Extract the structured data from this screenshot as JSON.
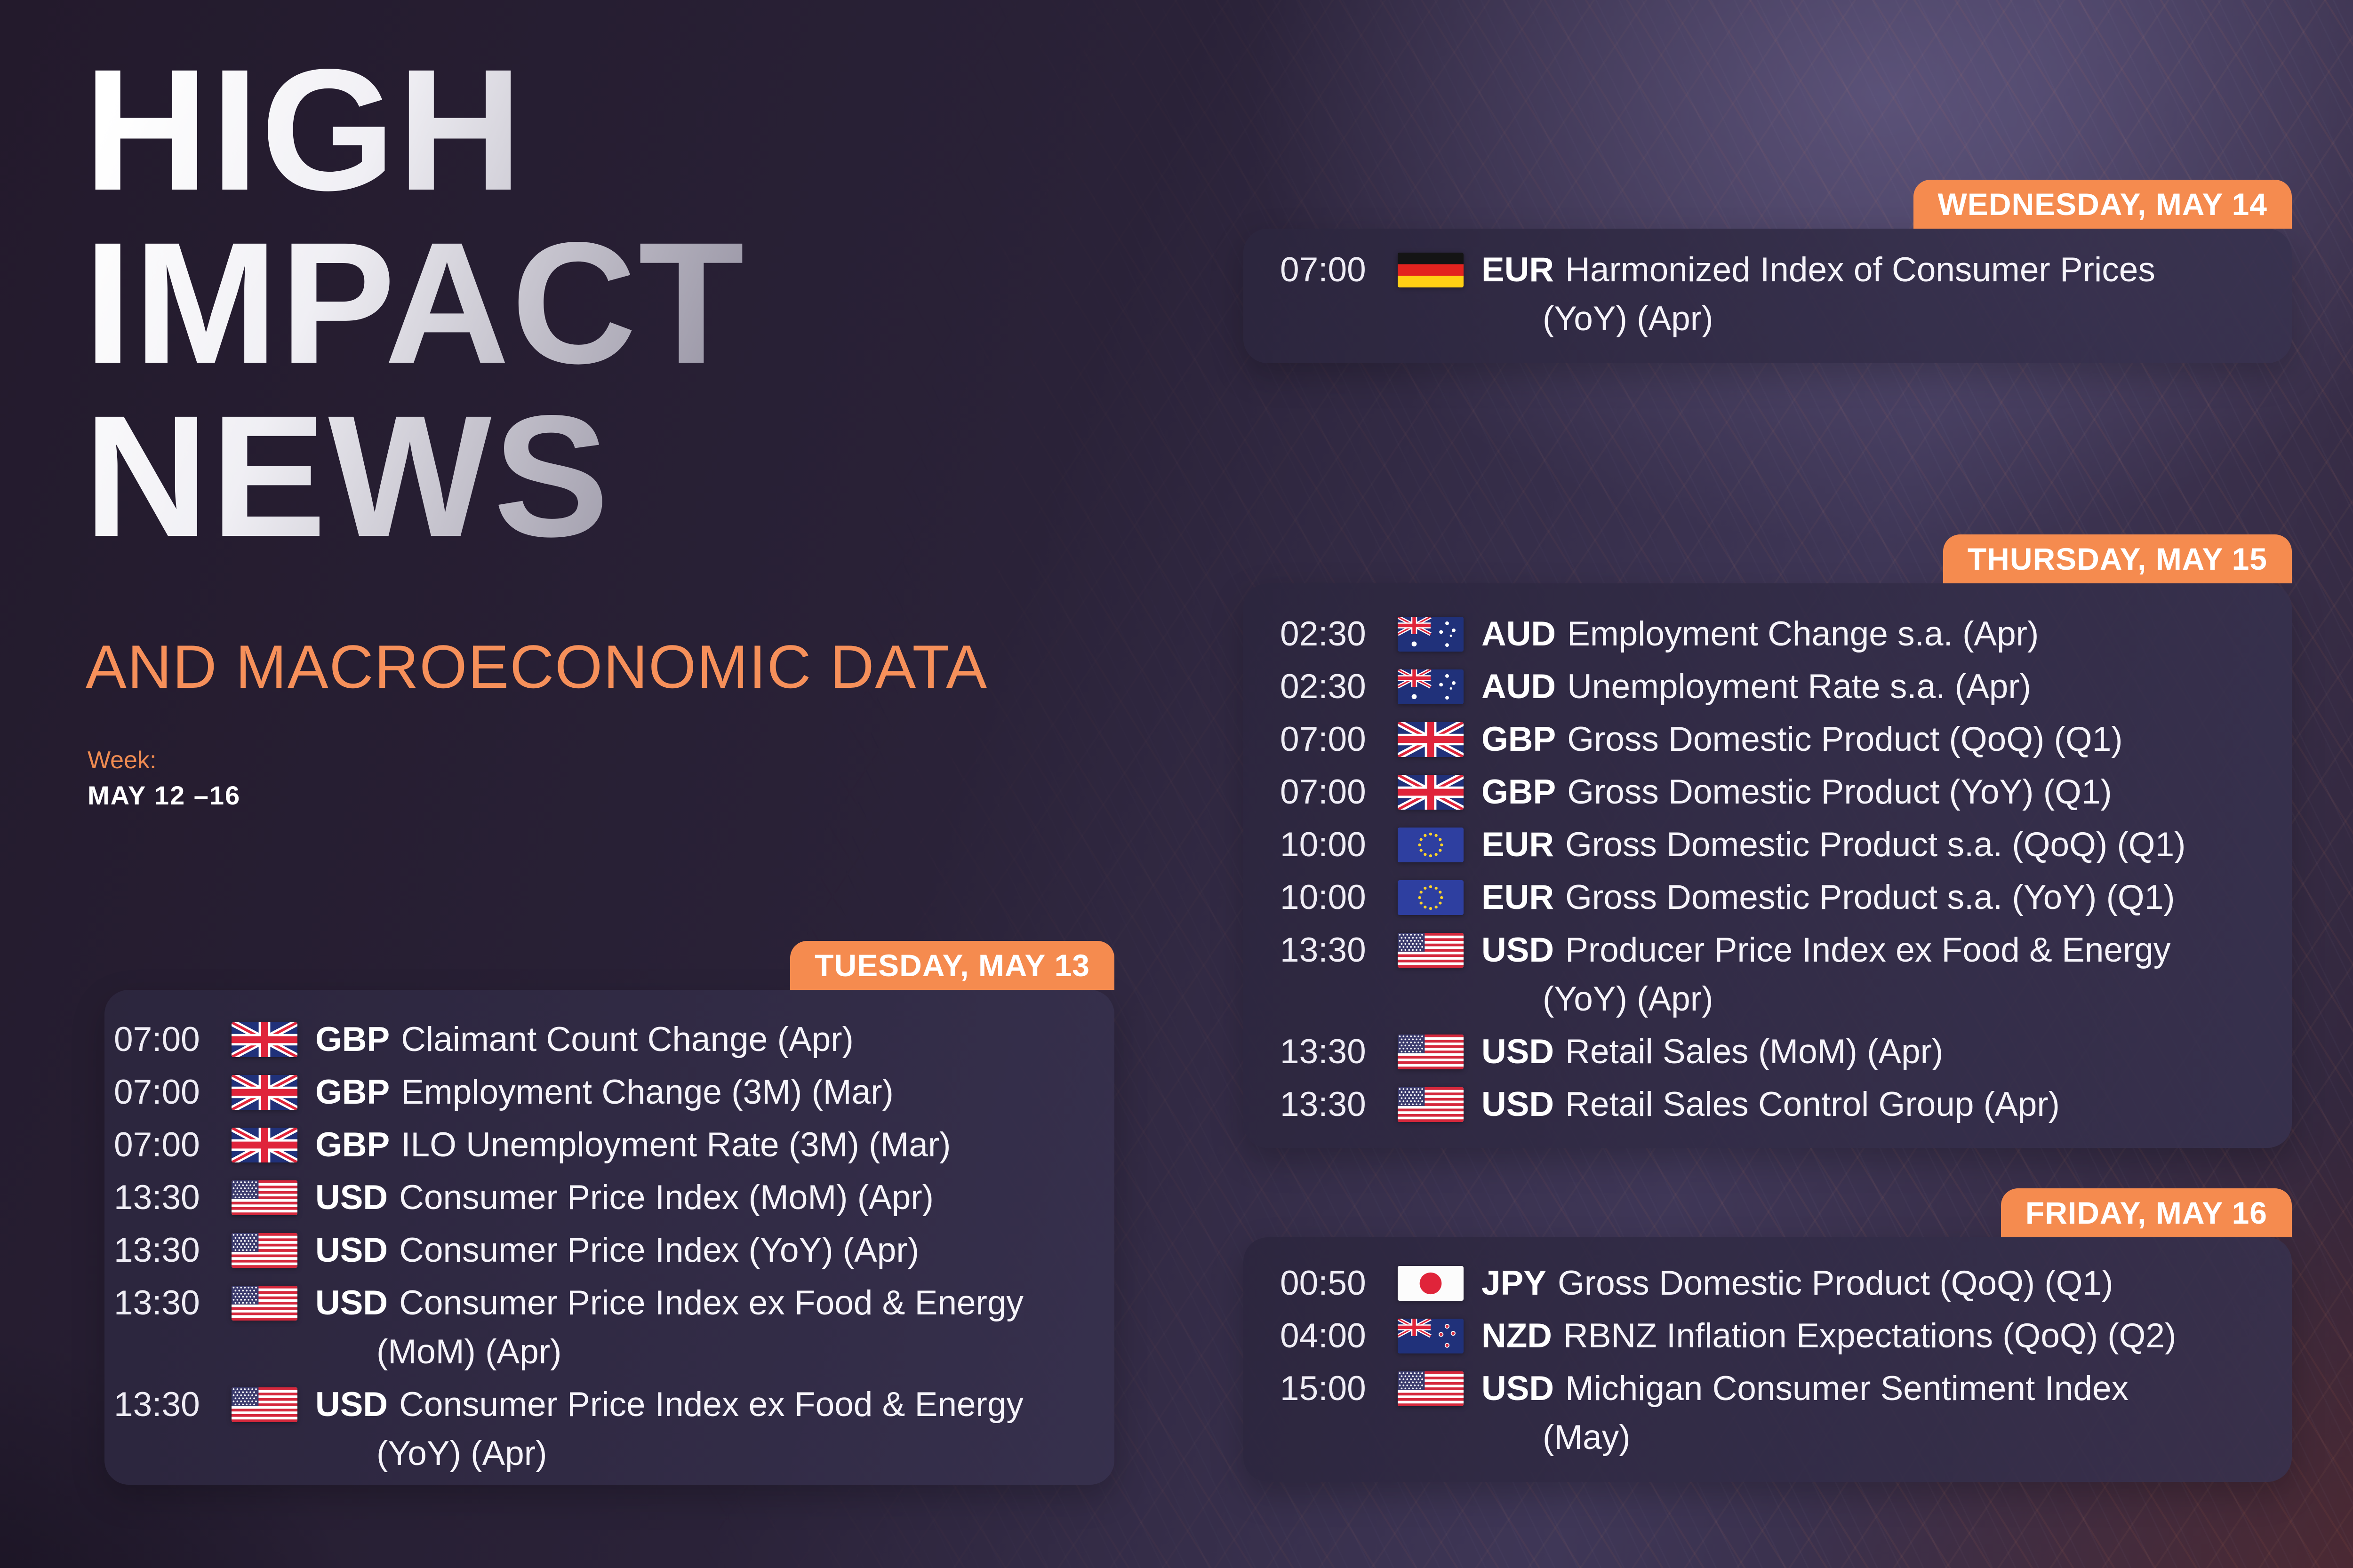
{
  "header": {
    "title_lines": [
      "HIGH",
      "IMPACT",
      "NEWS"
    ],
    "subtitle": "AND MACROECONOMIC DATA",
    "week_label": "Week:",
    "week_value": "MAY 12 –16"
  },
  "colors": {
    "accent_orange": "#F58B4F",
    "subtitle_orange": "#F6905A",
    "panel_background": "#2C263E",
    "page_background_dark": "#231A2C",
    "page_background_light": "#3F3757",
    "text_primary": "#FFFFFF",
    "title_gradient_start": "#FFFFFF",
    "title_gradient_end": "#8E8A9B"
  },
  "days": [
    {
      "id": "tuesday",
      "header": "TUESDAY, MAY 13",
      "events": [
        {
          "time": "07:00",
          "flag": "uk-flag",
          "currency": "GBP",
          "name": "Claimant Count Change (Apr)"
        },
        {
          "time": "07:00",
          "flag": "uk-flag",
          "currency": "GBP",
          "name": "Employment Change (3M) (Mar)"
        },
        {
          "time": "07:00",
          "flag": "uk-flag",
          "currency": "GBP",
          "name": "ILO Unemployment Rate (3M) (Mar)"
        },
        {
          "time": "13:30",
          "flag": "us-flag",
          "currency": "USD",
          "name": "Consumer Price Index (MoM) (Apr)"
        },
        {
          "time": "13:30",
          "flag": "us-flag",
          "currency": "USD",
          "name": "Consumer Price Index (YoY) (Apr)"
        },
        {
          "time": "13:30",
          "flag": "us-flag",
          "currency": "USD",
          "name": "Consumer Price Index ex Food & Energy",
          "name2": "(MoM) (Apr)"
        },
        {
          "time": "13:30",
          "flag": "us-flag",
          "currency": "USD",
          "name": "Consumer Price Index ex Food & Energy",
          "name2": "(YoY) (Apr)"
        }
      ]
    },
    {
      "id": "wednesday",
      "header": "WEDNESDAY, MAY 14",
      "events": [
        {
          "time": "07:00",
          "flag": "de-flag",
          "currency": "EUR",
          "name": "Harmonized Index of Consumer Prices",
          "name2": "(YoY) (Apr)"
        }
      ]
    },
    {
      "id": "thursday",
      "header": "THURSDAY, MAY 15",
      "events": [
        {
          "time": "02:30",
          "flag": "au-flag",
          "currency": "AUD",
          "name": "Employment Change s.a. (Apr)"
        },
        {
          "time": "02:30",
          "flag": "au-flag",
          "currency": "AUD",
          "name": "Unemployment Rate s.a. (Apr)"
        },
        {
          "time": "07:00",
          "flag": "uk-flag",
          "currency": "GBP",
          "name": "Gross Domestic Product (QoQ) (Q1)"
        },
        {
          "time": "07:00",
          "flag": "uk-flag",
          "currency": "GBP",
          "name": "Gross Domestic Product (YoY) (Q1)"
        },
        {
          "time": "10:00",
          "flag": "eu-flag",
          "currency": "EUR",
          "name": "Gross Domestic Product s.a. (QoQ) (Q1)"
        },
        {
          "time": "10:00",
          "flag": "eu-flag",
          "currency": "EUR",
          "name": "Gross Domestic Product s.a. (YoY) (Q1)"
        },
        {
          "time": "13:30",
          "flag": "us-flag",
          "currency": "USD",
          "name": "Producer Price Index ex Food & Energy",
          "name2": "(YoY) (Apr)"
        },
        {
          "time": "13:30",
          "flag": "us-flag",
          "currency": "USD",
          "name": "Retail Sales (MoM) (Apr)"
        },
        {
          "time": "13:30",
          "flag": "us-flag",
          "currency": "USD",
          "name": "Retail Sales Control Group (Apr)"
        }
      ]
    },
    {
      "id": "friday",
      "header": "FRIDAY, MAY 16",
      "events": [
        {
          "time": "00:50",
          "flag": "jp-flag",
          "currency": "JPY",
          "name": "Gross Domestic Product (QoQ) (Q1)"
        },
        {
          "time": "04:00",
          "flag": "nz-flag",
          "currency": "NZD",
          "name": "RBNZ Inflation Expectations (QoQ) (Q2)"
        },
        {
          "time": "15:00",
          "flag": "us-flag",
          "currency": "USD",
          "name": "Michigan Consumer Sentiment Index",
          "name2": "(May)"
        }
      ]
    }
  ]
}
